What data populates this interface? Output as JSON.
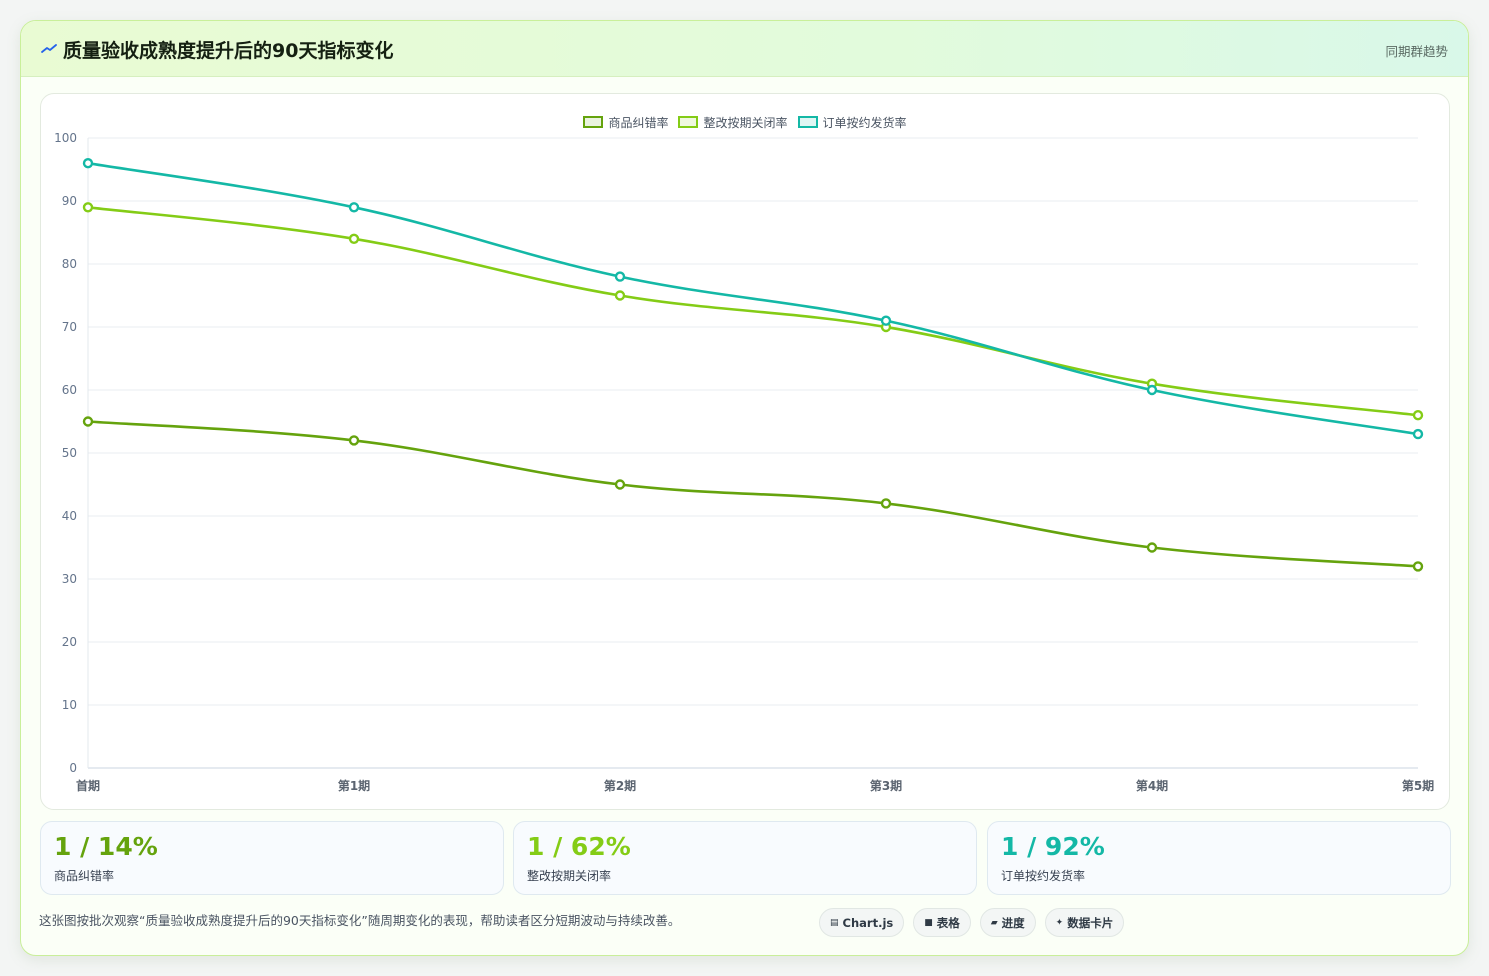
{
  "header": {
    "title": "质量验收成熟度提升后的90天指标变化",
    "subtitle": "同期群趋势",
    "icon": "trend-line-icon"
  },
  "chart_data": {
    "type": "line",
    "categories": [
      "首期",
      "第1期",
      "第2期",
      "第3期",
      "第4期",
      "第5期"
    ],
    "series": [
      {
        "name": "商品纠错率",
        "color": "#65a30d",
        "values": [
          55,
          52,
          45,
          42,
          35,
          32
        ]
      },
      {
        "name": "整改按期关闭率",
        "color": "#84cc16",
        "values": [
          89,
          84,
          75,
          70,
          61,
          56
        ]
      },
      {
        "name": "订单按约发货率",
        "color": "#14b8a6",
        "values": [
          96,
          89,
          78,
          71,
          60,
          53
        ]
      }
    ],
    "ylim": [
      0,
      100
    ],
    "yticks": [
      0,
      10,
      20,
      30,
      40,
      50,
      60,
      70,
      80,
      90,
      100
    ],
    "grid": true,
    "legend_position": "top-center"
  },
  "stats": [
    {
      "value": "1 / 14%",
      "label": "商品纠错率",
      "color": "#65a30d"
    },
    {
      "value": "1 / 62%",
      "label": "整改按期关闭率",
      "color": "#84cc16"
    },
    {
      "value": "1 / 92%",
      "label": "订单按约发货率",
      "color": "#14b8a6"
    }
  ],
  "footer": {
    "note": "这张图按批次观察“质量验收成熟度提升后的90天指标变化”随周期变化的表现，帮助读者区分短期波动与持续改善。"
  },
  "chips": [
    {
      "label": "Chart.js",
      "icon": "chart-icon"
    },
    {
      "label": "表格",
      "icon": "table-icon"
    },
    {
      "label": "进度",
      "icon": "progress-icon"
    },
    {
      "label": "数据卡片",
      "icon": "sparkle-icon"
    }
  ]
}
